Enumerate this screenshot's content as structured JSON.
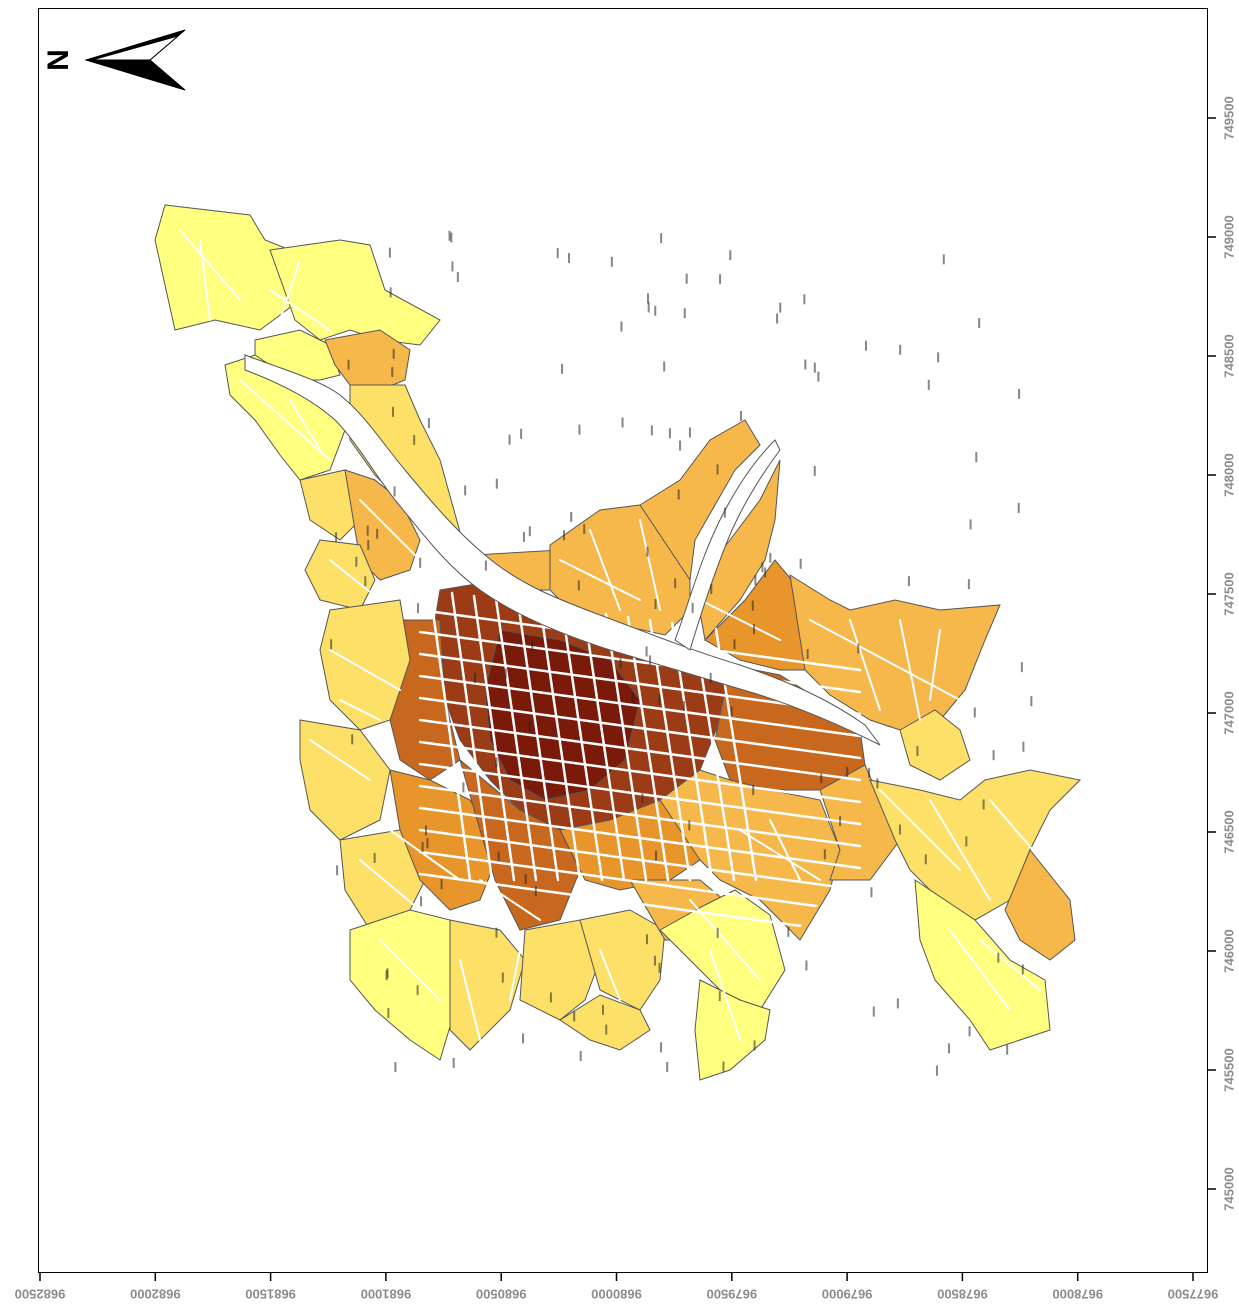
{
  "map": {
    "north_label": "N",
    "x_ticks": [
      "9682500",
      "9682000",
      "9681500",
      "9681000",
      "9680500",
      "9680000",
      "9679500",
      "9679000",
      "9678500",
      "9678000",
      "9677500"
    ],
    "y_ticks": [
      "749500",
      "749000",
      "748500",
      "748000",
      "747500",
      "747000",
      "746500",
      "746000",
      "745500",
      "745000"
    ],
    "fill_classes": [
      "#ffff80",
      "#fde068",
      "#f6b84a",
      "#e8962c",
      "#c8681e",
      "#9c3c16",
      "#7a1a0a"
    ],
    "outline_color": "#555555",
    "street_color": "#ffffff",
    "river_color": "#ffffff"
  }
}
